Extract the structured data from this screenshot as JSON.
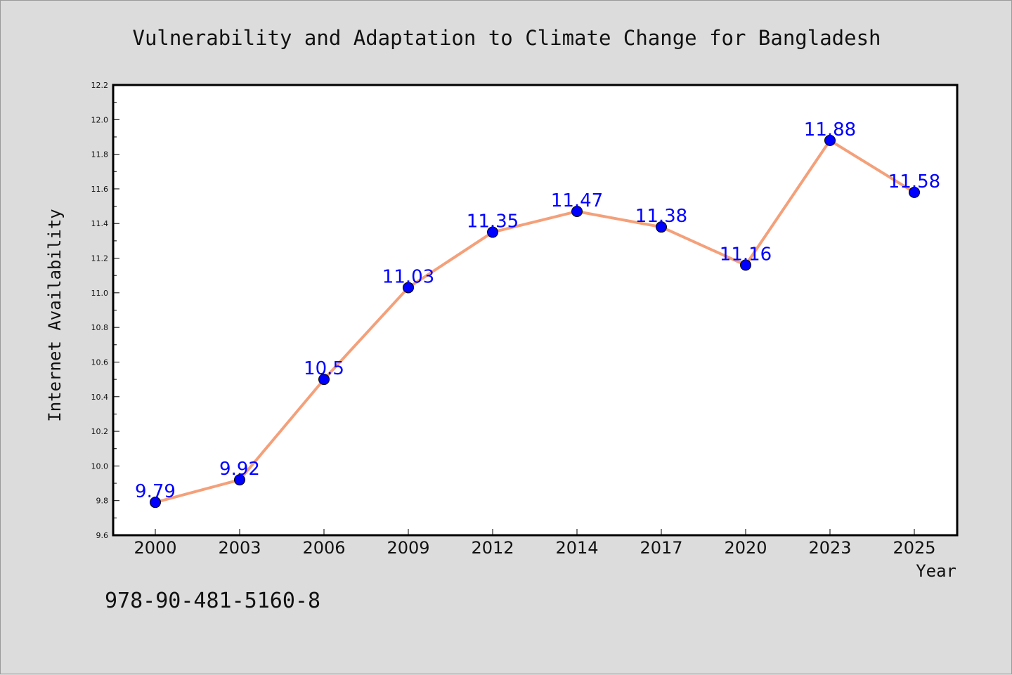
{
  "chart_data": {
    "type": "line",
    "title": "Vulnerability and Adaptation to Climate Change for Bangladesh",
    "xlabel": "Year",
    "ylabel": "Internet Availability",
    "categories": [
      "2000",
      "2003",
      "2006",
      "2009",
      "2012",
      "2014",
      "2017",
      "2020",
      "2023",
      "2025"
    ],
    "series": [
      {
        "values": [
          9.79,
          9.92,
          10.5,
          11.03,
          11.35,
          11.47,
          11.38,
          11.16,
          11.88,
          11.58
        ],
        "data_labels": [
          "9.79",
          "9.92",
          "10.5",
          "11.03",
          "11.35",
          "11.47",
          "11.38",
          "11.16",
          "11.88",
          "11.58"
        ],
        "line_color": "#f4a07a",
        "marker_color": "#0000ff"
      }
    ],
    "ylim": [
      9.6,
      12.2
    ],
    "yticks": [
      "9.6",
      "9.8",
      "10.0",
      "10.2",
      "10.4",
      "10.6",
      "10.8",
      "11.0",
      "11.2",
      "11.4",
      "11.6",
      "11.8",
      "12.0",
      "12.2"
    ],
    "grid": false,
    "legend": "none"
  },
  "footer": {
    "isbn": "978-90-481-5160-8"
  },
  "colors": {
    "background": "#dcdcdc",
    "plot_background": "#ffffff",
    "axis": "#000000"
  }
}
